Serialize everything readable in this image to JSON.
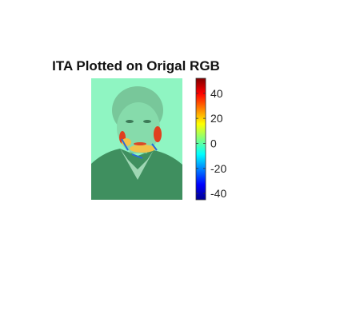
{
  "chart_data": {
    "type": "heatmap",
    "title": "ITA Plotted on Origal RGB",
    "xlabel": "",
    "ylabel": "",
    "colorbar": {
      "colormap": "jet",
      "range": [
        -45,
        52
      ],
      "tick_labels": [
        "40",
        "20",
        "0",
        "-20",
        "-40"
      ],
      "tick_values": [
        40,
        20,
        0,
        -20,
        -40
      ],
      "orientation": "vertical",
      "placement": "right of image"
    },
    "background_value": 0,
    "overlay_colors": {
      "tint": "#8ff5c2",
      "hot": "#e0401e",
      "warm": "#f2c24a",
      "cool": "#2a6bd8"
    }
  }
}
